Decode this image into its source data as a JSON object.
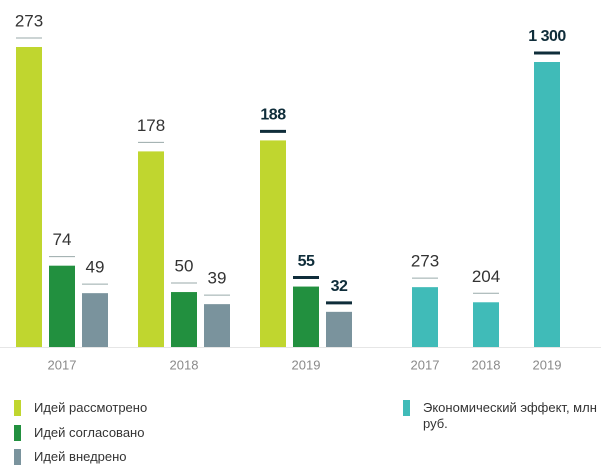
{
  "chart_data": [
    {
      "type": "bar",
      "categories": [
        "2017",
        "2018",
        "2019"
      ],
      "series": [
        {
          "name": "Идей рассмотрено",
          "color": "#c0d62f",
          "values": [
            273,
            178,
            188
          ]
        },
        {
          "name": "Идей согласовано",
          "color": "#22903f",
          "values": [
            74,
            50,
            55
          ]
        },
        {
          "name": "Идей внедрено",
          "color": "#7a939d",
          "values": [
            49,
            39,
            32
          ]
        }
      ]
    },
    {
      "type": "bar",
      "categories": [
        "2017",
        "2018",
        "2019"
      ],
      "series": [
        {
          "name": "Экономический эффект, млн руб.",
          "color": "#40bbb8",
          "values": [
            273,
            204,
            1300
          ],
          "value_labels": [
            "273",
            "204",
            "1 300"
          ]
        }
      ]
    }
  ]
}
